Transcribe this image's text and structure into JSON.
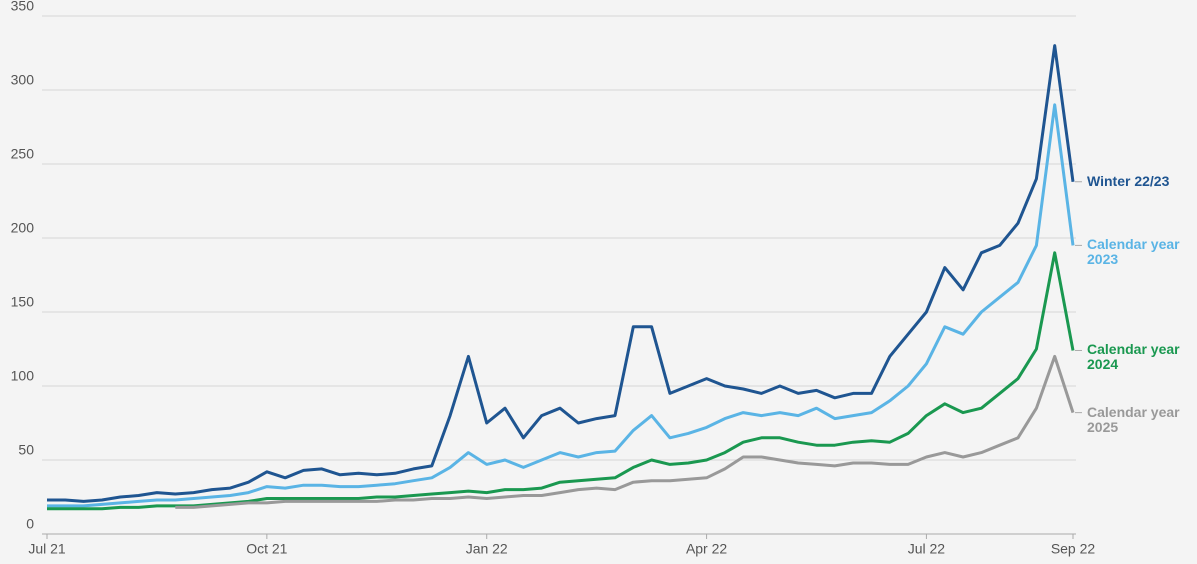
{
  "chart_data": {
    "type": "line",
    "categories": [
      "Jul 21",
      null,
      null,
      null,
      null,
      null,
      null,
      null,
      null,
      null,
      null,
      null,
      "Oct 21",
      null,
      null,
      null,
      null,
      null,
      null,
      null,
      null,
      null,
      null,
      null,
      "Jan 22",
      null,
      null,
      null,
      null,
      null,
      null,
      null,
      null,
      null,
      null,
      null,
      "Apr 22",
      null,
      null,
      null,
      null,
      null,
      null,
      null,
      null,
      null,
      null,
      null,
      "Jul 22",
      null,
      null,
      null,
      null,
      null,
      null,
      null,
      "Sep 22"
    ],
    "series": [
      {
        "name": "Winter 22/23",
        "color": "#1f5591",
        "values": [
          23,
          23,
          22,
          23,
          25,
          26,
          28,
          27,
          28,
          30,
          31,
          35,
          42,
          38,
          43,
          44,
          40,
          41,
          40,
          41,
          44,
          46,
          80,
          120,
          75,
          85,
          65,
          80,
          85,
          75,
          78,
          80,
          140,
          140,
          95,
          100,
          105,
          100,
          98,
          95,
          100,
          95,
          97,
          92,
          95,
          95,
          120,
          135,
          150,
          180,
          165,
          190,
          195,
          210,
          240,
          330,
          238
        ]
      },
      {
        "name": "Calendar year 2023",
        "color": "#5ab4e5",
        "values": [
          19,
          19,
          19,
          20,
          21,
          22,
          23,
          23,
          24,
          25,
          26,
          28,
          32,
          31,
          33,
          33,
          32,
          32,
          33,
          34,
          36,
          38,
          45,
          55,
          47,
          50,
          45,
          50,
          55,
          52,
          55,
          56,
          70,
          80,
          65,
          68,
          72,
          78,
          82,
          80,
          82,
          80,
          85,
          78,
          80,
          82,
          90,
          100,
          115,
          140,
          135,
          150,
          160,
          170,
          195,
          290,
          195
        ]
      },
      {
        "name": "Calendar year 2024",
        "color": "#1a9850",
        "values": [
          17,
          17,
          17,
          17,
          18,
          18,
          19,
          19,
          19,
          20,
          21,
          22,
          24,
          24,
          24,
          24,
          24,
          24,
          25,
          25,
          26,
          27,
          28,
          29,
          28,
          30,
          30,
          31,
          35,
          36,
          37,
          38,
          45,
          50,
          47,
          48,
          50,
          55,
          62,
          65,
          65,
          62,
          60,
          60,
          62,
          63,
          62,
          68,
          80,
          88,
          82,
          85,
          95,
          105,
          125,
          190,
          124
        ]
      },
      {
        "name": "Calendar year 2025",
        "color": "#999999",
        "values": [
          null,
          null,
          null,
          null,
          null,
          null,
          null,
          18,
          18,
          19,
          20,
          21,
          21,
          22,
          22,
          22,
          22,
          22,
          22,
          23,
          23,
          24,
          24,
          25,
          24,
          25,
          26,
          26,
          28,
          30,
          31,
          30,
          35,
          36,
          36,
          37,
          38,
          44,
          52,
          52,
          50,
          48,
          47,
          46,
          48,
          48,
          47,
          47,
          52,
          55,
          52,
          55,
          60,
          65,
          85,
          120,
          82
        ]
      }
    ],
    "ylim": [
      0,
      350
    ],
    "yticks": [
      0,
      50,
      100,
      150,
      200,
      250,
      300,
      350
    ],
    "grid": true
  }
}
